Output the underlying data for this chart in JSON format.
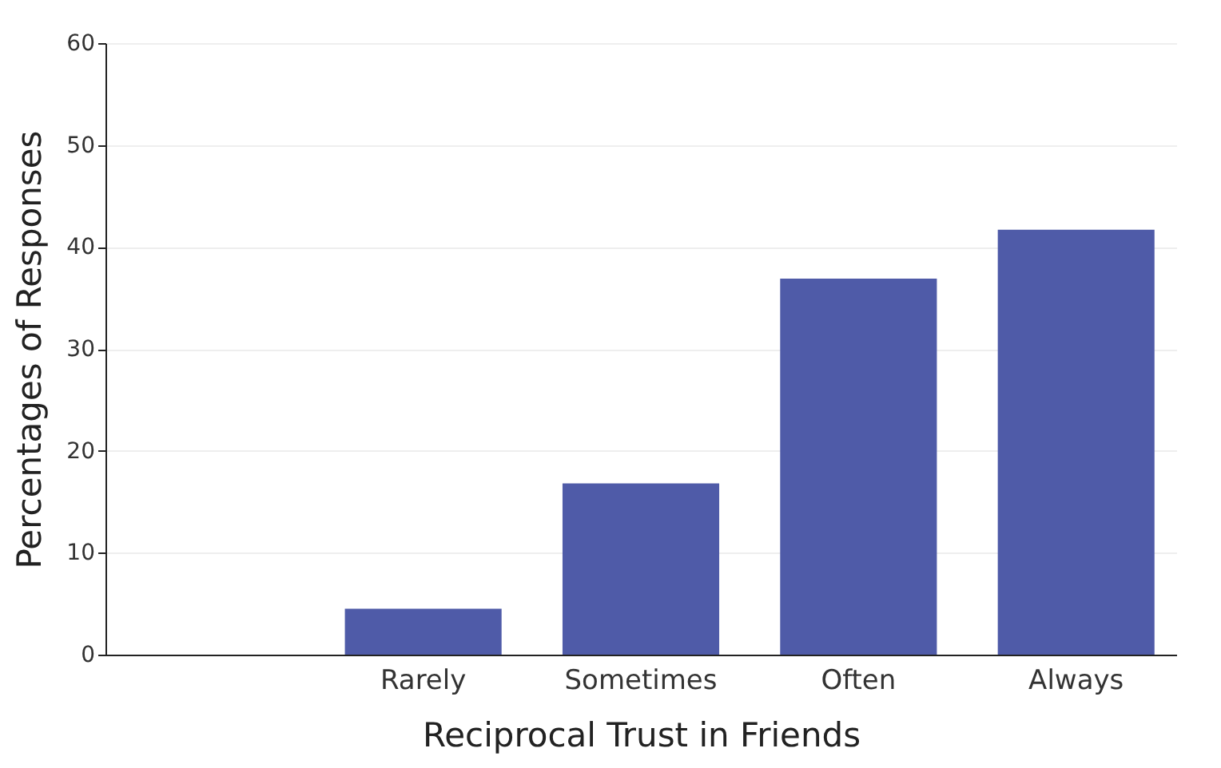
{
  "chart_data": {
    "type": "bar",
    "categories": [
      null,
      "Rarely",
      "Sometimes",
      "Often",
      "Always"
    ],
    "values": [
      null,
      4.5,
      16.8,
      36.9,
      41.7
    ],
    "color": "#4f5ba8",
    "xlabel": "Reciprocal Trust in Friends",
    "ylabel": "Percentages of Responses",
    "ylim": [
      0,
      60
    ],
    "yticks": [
      0,
      10,
      20,
      30,
      40,
      50,
      60
    ],
    "grid": "y"
  }
}
